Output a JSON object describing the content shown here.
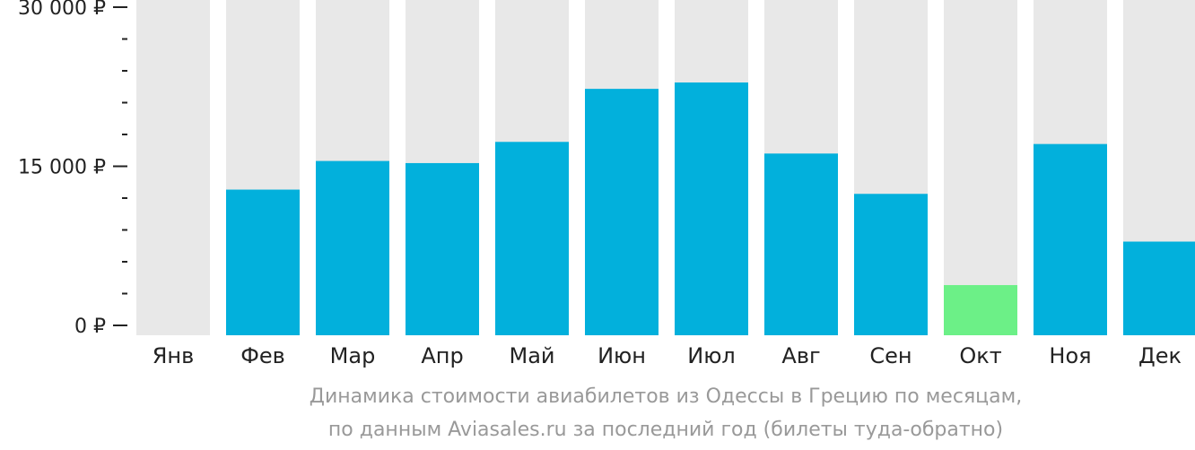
{
  "chart_data": {
    "type": "bar",
    "categories": [
      "Янв",
      "Фев",
      "Мар",
      "Апр",
      "Май",
      "Июн",
      "Июл",
      "Авг",
      "Сен",
      "Окт",
      "Ноя",
      "Дек"
    ],
    "values": [
      null,
      12800,
      15500,
      15300,
      17300,
      22300,
      22900,
      16200,
      12400,
      3800,
      17100,
      7900
    ],
    "ylim": [
      0,
      30000
    ],
    "y_ticks": [
      {
        "value": 0,
        "label": "0 ₽"
      },
      {
        "value": 15000,
        "label": "15 000 ₽"
      },
      {
        "value": 30000,
        "label": "30 000 ₽"
      }
    ],
    "minor_tick_step": 3000,
    "highlight_index": 9,
    "grid": false,
    "legend": "none",
    "colors": {
      "bar": "#02b0dc",
      "highlight": "#6cf087",
      "background_bar": "#e8e8e8",
      "axis": "#222222",
      "caption": "#999999"
    }
  },
  "caption": {
    "line1": "Динамика стоимости авиабилетов из Одессы в Грецию по месяцам,",
    "line2": "по данным Aviasales.ru за последний год (билеты туда-обратно)"
  }
}
